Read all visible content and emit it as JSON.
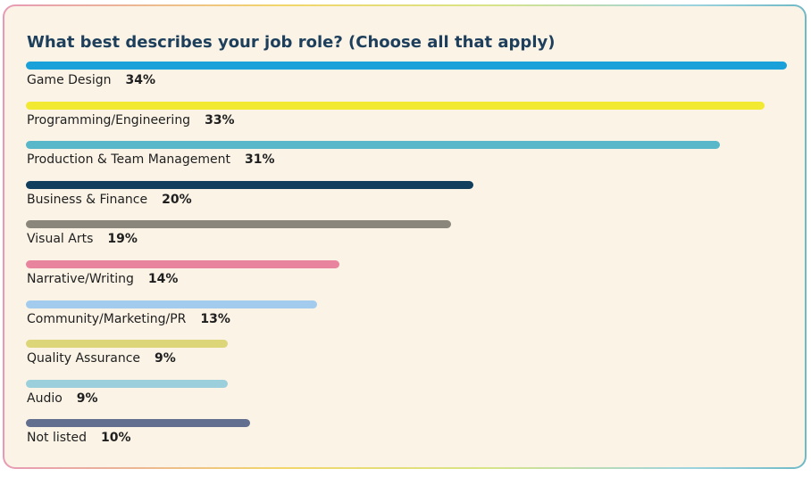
{
  "chart_data": {
    "type": "bar",
    "title": "What best describes your job role? (Choose all that apply)",
    "unit": "%",
    "xlim": [
      0,
      34
    ],
    "categories": [
      "Game Design",
      "Programming/Engineering",
      "Production & Team Management",
      "Business & Finance",
      "Visual Arts",
      "Narrative/Writing",
      "Community/Marketing/PR",
      "Quality Assurance",
      "Audio",
      "Not listed"
    ],
    "values": [
      34,
      33,
      31,
      20,
      19,
      14,
      13,
      9,
      9,
      10
    ],
    "value_labels": [
      "34%",
      "33%",
      "31%",
      "20%",
      "19%",
      "14%",
      "13%",
      "9%",
      "9%",
      "10%"
    ],
    "colors": [
      "#1aa1d9",
      "#f2e932",
      "#58b8c9",
      "#123e5e",
      "#8a867b",
      "#e9849f",
      "#a3cbed",
      "#dcd679",
      "#9ccfdc",
      "#636f8e"
    ]
  }
}
